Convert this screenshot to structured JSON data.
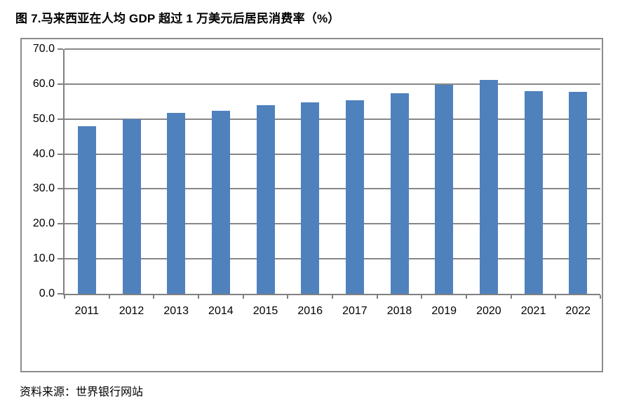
{
  "figure": {
    "title": "图 7.马来西亚在人均 GDP 超过 1 万美元后居民消费率（%）",
    "source": "资料来源：世界银行网站"
  },
  "chart_data": {
    "type": "bar",
    "title": "图 7.马来西亚在人均 GDP 超过 1 万美元后居民消费率（%）",
    "categories": [
      "2011",
      "2012",
      "2013",
      "2014",
      "2015",
      "2016",
      "2017",
      "2018",
      "2019",
      "2020",
      "2021",
      "2022"
    ],
    "values": [
      48.0,
      50.0,
      51.7,
      52.4,
      53.9,
      54.8,
      55.4,
      57.3,
      59.7,
      61.2,
      58.0,
      57.7
    ],
    "xlabel": "",
    "ylabel": "",
    "ylim": [
      0,
      70
    ],
    "ytick_step": 10,
    "ytick_labels": [
      "0.0",
      "10.0",
      "20.0",
      "30.0",
      "40.0",
      "50.0",
      "60.0",
      "70.0"
    ],
    "grid": true,
    "legend_position": "none",
    "bar_color": "#4F81BD",
    "grid_color": "#878787",
    "axis_color": "#808080",
    "frame_border_color": "#8C8C8C",
    "source_note": "资料来源：世界银行网站"
  }
}
